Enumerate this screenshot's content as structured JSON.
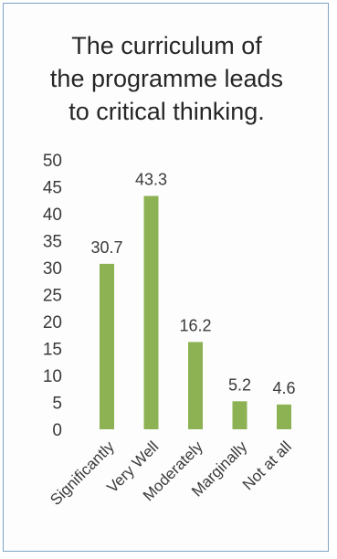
{
  "chart_data": {
    "type": "bar",
    "title_lines": [
      "The curriculum of",
      "the programme leads",
      "to critical thinking."
    ],
    "categories": [
      "Significantly",
      "Very Well",
      "Moderately",
      "Marginally",
      "Not at all"
    ],
    "values": [
      30.7,
      43.3,
      16.2,
      5.2,
      4.6
    ],
    "data_labels": [
      "30.7",
      "43.3",
      "16.2",
      "5.2",
      "4.6"
    ],
    "yticks": [
      "0",
      "5",
      "10",
      "15",
      "20",
      "25",
      "30",
      "35",
      "40",
      "45",
      "50"
    ],
    "ylim": [
      0,
      50
    ],
    "grid": false,
    "legend": "none",
    "bar_color": "#8db254",
    "frame_color": "#7da3c8"
  }
}
